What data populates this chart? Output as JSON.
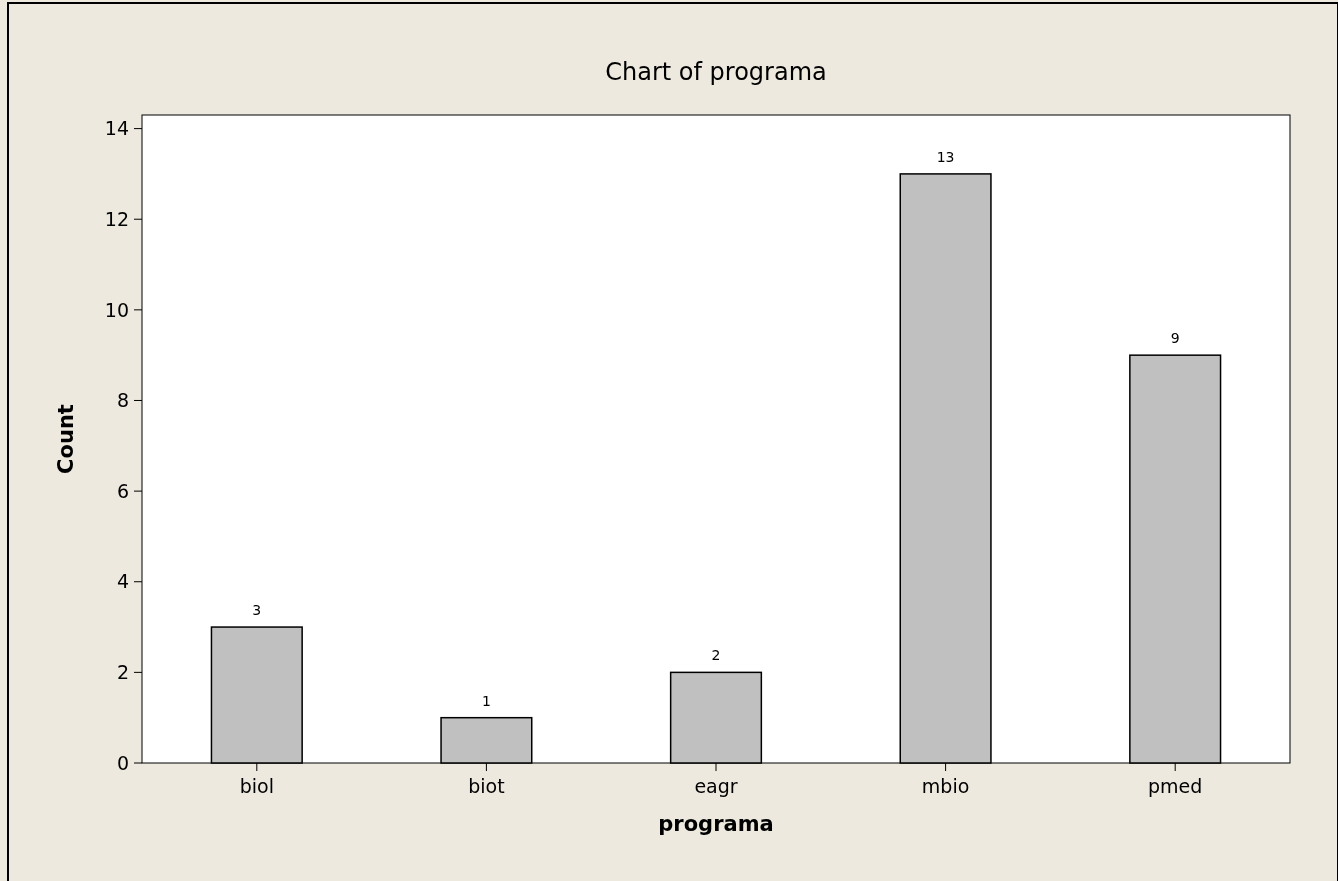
{
  "chart_data": {
    "type": "bar",
    "title": "Chart of programa",
    "xlabel": "programa",
    "ylabel": "Count",
    "categories": [
      "biol",
      "biot",
      "eagr",
      "mbio",
      "pmed"
    ],
    "values": [
      3,
      1,
      2,
      13,
      9
    ],
    "color": "#c0c0c0",
    "ylim": [
      0,
      14.3
    ],
    "yticks": [
      0,
      2,
      4,
      6,
      8,
      10,
      12,
      14
    ],
    "data_labels": true
  }
}
